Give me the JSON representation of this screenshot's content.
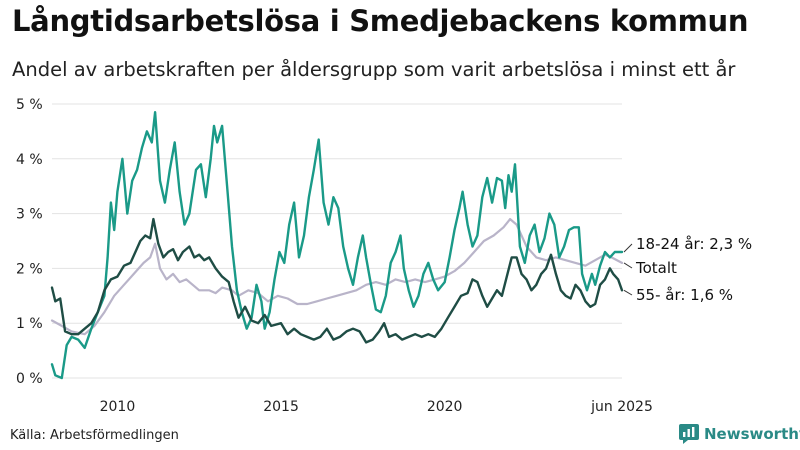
{
  "header": {
    "title": "Långtidsarbetslösa i Smedjebackens kommun",
    "subtitle": "Andel av arbetskraften per åldersgrupp som varit arbetslösa i minst ett år"
  },
  "footer": {
    "source": "Källa: Arbetsförmedlingen",
    "brand": "Newsworthy"
  },
  "chart_data": {
    "type": "line",
    "title": "Långtidsarbetslösa i Smedjebackens kommun",
    "subtitle": "Andel av arbetskraften per åldersgrupp som varit arbetslösa i minst ett år",
    "xlabel": "",
    "ylabel": "",
    "x_range": [
      2008.0,
      2025.42
    ],
    "ylim": [
      0,
      5
    ],
    "y_ticks": [
      {
        "value": 0,
        "label": "0 %"
      },
      {
        "value": 1,
        "label": "1 %"
      },
      {
        "value": 2,
        "label": "2 %"
      },
      {
        "value": 3,
        "label": "3 %"
      },
      {
        "value": 4,
        "label": "4 %"
      },
      {
        "value": 5,
        "label": "5 %"
      }
    ],
    "x_ticks": [
      {
        "value": 2010,
        "label": "2010"
      },
      {
        "value": 2015,
        "label": "2015"
      },
      {
        "value": 2020,
        "label": "2020"
      },
      {
        "value": 2025.42,
        "label": "jun 2025"
      }
    ],
    "grid": true,
    "series": [
      {
        "name": "Totalt",
        "label": "Totalt",
        "color": "#b9b4c9",
        "points": [
          [
            2008.0,
            1.05
          ],
          [
            2008.3,
            0.95
          ],
          [
            2008.6,
            0.85
          ],
          [
            2009.0,
            0.8
          ],
          [
            2009.3,
            0.95
          ],
          [
            2009.6,
            1.2
          ],
          [
            2009.9,
            1.5
          ],
          [
            2010.2,
            1.7
          ],
          [
            2010.5,
            1.9
          ],
          [
            2010.8,
            2.1
          ],
          [
            2011.0,
            2.2
          ],
          [
            2011.15,
            2.45
          ],
          [
            2011.3,
            2.0
          ],
          [
            2011.5,
            1.8
          ],
          [
            2011.7,
            1.9
          ],
          [
            2011.9,
            1.75
          ],
          [
            2012.1,
            1.8
          ],
          [
            2012.3,
            1.7
          ],
          [
            2012.5,
            1.6
          ],
          [
            2012.8,
            1.6
          ],
          [
            2013.0,
            1.55
          ],
          [
            2013.2,
            1.65
          ],
          [
            2013.5,
            1.6
          ],
          [
            2013.7,
            1.5
          ],
          [
            2014.0,
            1.6
          ],
          [
            2014.3,
            1.55
          ],
          [
            2014.6,
            1.4
          ],
          [
            2014.9,
            1.5
          ],
          [
            2015.2,
            1.45
          ],
          [
            2015.5,
            1.35
          ],
          [
            2015.8,
            1.35
          ],
          [
            2016.1,
            1.4
          ],
          [
            2016.4,
            1.45
          ],
          [
            2016.7,
            1.5
          ],
          [
            2017.0,
            1.55
          ],
          [
            2017.3,
            1.6
          ],
          [
            2017.6,
            1.7
          ],
          [
            2017.9,
            1.75
          ],
          [
            2018.2,
            1.7
          ],
          [
            2018.5,
            1.8
          ],
          [
            2018.8,
            1.75
          ],
          [
            2019.1,
            1.8
          ],
          [
            2019.4,
            1.75
          ],
          [
            2019.7,
            1.8
          ],
          [
            2020.0,
            1.85
          ],
          [
            2020.3,
            1.95
          ],
          [
            2020.6,
            2.1
          ],
          [
            2020.9,
            2.3
          ],
          [
            2021.2,
            2.5
          ],
          [
            2021.5,
            2.6
          ],
          [
            2021.8,
            2.75
          ],
          [
            2022.0,
            2.9
          ],
          [
            2022.2,
            2.8
          ],
          [
            2022.5,
            2.4
          ],
          [
            2022.8,
            2.2
          ],
          [
            2023.1,
            2.15
          ],
          [
            2023.4,
            2.2
          ],
          [
            2023.7,
            2.15
          ],
          [
            2024.0,
            2.1
          ],
          [
            2024.3,
            2.05
          ],
          [
            2024.6,
            2.15
          ],
          [
            2024.9,
            2.25
          ],
          [
            2025.1,
            2.2
          ],
          [
            2025.42,
            2.1
          ]
        ]
      },
      {
        "name": "18-24 år",
        "label": "18-24 år: 2,3 %",
        "color": "#1a9a88",
        "points": [
          [
            2008.0,
            0.25
          ],
          [
            2008.1,
            0.05
          ],
          [
            2008.3,
            0.0
          ],
          [
            2008.45,
            0.6
          ],
          [
            2008.6,
            0.75
          ],
          [
            2008.8,
            0.7
          ],
          [
            2009.0,
            0.55
          ],
          [
            2009.2,
            0.9
          ],
          [
            2009.4,
            1.2
          ],
          [
            2009.6,
            1.5
          ],
          [
            2009.7,
            2.2
          ],
          [
            2009.8,
            3.2
          ],
          [
            2009.9,
            2.7
          ],
          [
            2010.0,
            3.4
          ],
          [
            2010.15,
            4.0
          ],
          [
            2010.3,
            3.0
          ],
          [
            2010.45,
            3.6
          ],
          [
            2010.6,
            3.8
          ],
          [
            2010.75,
            4.2
          ],
          [
            2010.9,
            4.5
          ],
          [
            2011.05,
            4.3
          ],
          [
            2011.15,
            4.85
          ],
          [
            2011.3,
            3.6
          ],
          [
            2011.45,
            3.2
          ],
          [
            2011.6,
            3.8
          ],
          [
            2011.75,
            4.3
          ],
          [
            2011.9,
            3.4
          ],
          [
            2012.05,
            2.8
          ],
          [
            2012.2,
            3.0
          ],
          [
            2012.4,
            3.8
          ],
          [
            2012.55,
            3.9
          ],
          [
            2012.7,
            3.3
          ],
          [
            2012.85,
            4.0
          ],
          [
            2012.95,
            4.6
          ],
          [
            2013.05,
            4.3
          ],
          [
            2013.2,
            4.6
          ],
          [
            2013.35,
            3.5
          ],
          [
            2013.5,
            2.4
          ],
          [
            2013.65,
            1.6
          ],
          [
            2013.8,
            1.2
          ],
          [
            2013.95,
            0.9
          ],
          [
            2014.1,
            1.1
          ],
          [
            2014.25,
            1.7
          ],
          [
            2014.4,
            1.4
          ],
          [
            2014.5,
            0.9
          ],
          [
            2014.65,
            1.2
          ],
          [
            2014.8,
            1.8
          ],
          [
            2014.95,
            2.3
          ],
          [
            2015.1,
            2.1
          ],
          [
            2015.25,
            2.8
          ],
          [
            2015.4,
            3.2
          ],
          [
            2015.55,
            2.2
          ],
          [
            2015.7,
            2.6
          ],
          [
            2015.85,
            3.3
          ],
          [
            2016.0,
            3.8
          ],
          [
            2016.15,
            4.35
          ],
          [
            2016.3,
            3.2
          ],
          [
            2016.45,
            2.8
          ],
          [
            2016.6,
            3.3
          ],
          [
            2016.75,
            3.1
          ],
          [
            2016.9,
            2.4
          ],
          [
            2017.05,
            2.0
          ],
          [
            2017.2,
            1.7
          ],
          [
            2017.35,
            2.2
          ],
          [
            2017.5,
            2.6
          ],
          [
            2017.6,
            2.2
          ],
          [
            2017.75,
            1.7
          ],
          [
            2017.9,
            1.25
          ],
          [
            2018.05,
            1.2
          ],
          [
            2018.2,
            1.5
          ],
          [
            2018.35,
            2.1
          ],
          [
            2018.5,
            2.3
          ],
          [
            2018.65,
            2.6
          ],
          [
            2018.75,
            2.0
          ],
          [
            2018.9,
            1.6
          ],
          [
            2019.05,
            1.3
          ],
          [
            2019.2,
            1.5
          ],
          [
            2019.35,
            1.9
          ],
          [
            2019.5,
            2.1
          ],
          [
            2019.65,
            1.8
          ],
          [
            2019.8,
            1.6
          ],
          [
            2020.0,
            1.75
          ],
          [
            2020.15,
            2.2
          ],
          [
            2020.3,
            2.7
          ],
          [
            2020.45,
            3.1
          ],
          [
            2020.55,
            3.4
          ],
          [
            2020.7,
            2.8
          ],
          [
            2020.85,
            2.4
          ],
          [
            2021.0,
            2.6
          ],
          [
            2021.15,
            3.3
          ],
          [
            2021.3,
            3.65
          ],
          [
            2021.45,
            3.2
          ],
          [
            2021.6,
            3.65
          ],
          [
            2021.75,
            3.6
          ],
          [
            2021.85,
            3.1
          ],
          [
            2021.95,
            3.7
          ],
          [
            2022.05,
            3.4
          ],
          [
            2022.15,
            3.9
          ],
          [
            2022.3,
            2.4
          ],
          [
            2022.45,
            2.1
          ],
          [
            2022.6,
            2.6
          ],
          [
            2022.75,
            2.8
          ],
          [
            2022.9,
            2.3
          ],
          [
            2023.05,
            2.55
          ],
          [
            2023.2,
            3.0
          ],
          [
            2023.35,
            2.8
          ],
          [
            2023.5,
            2.2
          ],
          [
            2023.65,
            2.4
          ],
          [
            2023.8,
            2.7
          ],
          [
            2023.95,
            2.75
          ],
          [
            2024.1,
            2.75
          ],
          [
            2024.2,
            1.9
          ],
          [
            2024.35,
            1.6
          ],
          [
            2024.5,
            1.9
          ],
          [
            2024.6,
            1.7
          ],
          [
            2024.75,
            2.05
          ],
          [
            2024.9,
            2.3
          ],
          [
            2025.05,
            2.2
          ],
          [
            2025.2,
            2.3
          ],
          [
            2025.42,
            2.3
          ]
        ]
      },
      {
        "name": "55- år",
        "label": "55- år: 1,6 %",
        "color": "#1f4d45",
        "points": [
          [
            2008.0,
            1.65
          ],
          [
            2008.1,
            1.4
          ],
          [
            2008.25,
            1.45
          ],
          [
            2008.4,
            0.85
          ],
          [
            2008.6,
            0.8
          ],
          [
            2008.8,
            0.8
          ],
          [
            2009.0,
            0.9
          ],
          [
            2009.2,
            1.0
          ],
          [
            2009.4,
            1.2
          ],
          [
            2009.6,
            1.6
          ],
          [
            2009.8,
            1.8
          ],
          [
            2010.0,
            1.85
          ],
          [
            2010.2,
            2.05
          ],
          [
            2010.4,
            2.1
          ],
          [
            2010.55,
            2.3
          ],
          [
            2010.7,
            2.5
          ],
          [
            2010.85,
            2.6
          ],
          [
            2011.0,
            2.55
          ],
          [
            2011.1,
            2.9
          ],
          [
            2011.25,
            2.45
          ],
          [
            2011.4,
            2.2
          ],
          [
            2011.55,
            2.3
          ],
          [
            2011.7,
            2.35
          ],
          [
            2011.85,
            2.15
          ],
          [
            2012.0,
            2.3
          ],
          [
            2012.2,
            2.4
          ],
          [
            2012.35,
            2.2
          ],
          [
            2012.5,
            2.25
          ],
          [
            2012.65,
            2.15
          ],
          [
            2012.8,
            2.2
          ],
          [
            2013.0,
            2.0
          ],
          [
            2013.2,
            1.85
          ],
          [
            2013.4,
            1.75
          ],
          [
            2013.55,
            1.4
          ],
          [
            2013.7,
            1.1
          ],
          [
            2013.9,
            1.3
          ],
          [
            2014.1,
            1.05
          ],
          [
            2014.3,
            1.0
          ],
          [
            2014.5,
            1.15
          ],
          [
            2014.7,
            0.95
          ],
          [
            2015.0,
            1.0
          ],
          [
            2015.2,
            0.8
          ],
          [
            2015.4,
            0.9
          ],
          [
            2015.6,
            0.8
          ],
          [
            2015.8,
            0.75
          ],
          [
            2016.0,
            0.7
          ],
          [
            2016.2,
            0.75
          ],
          [
            2016.4,
            0.9
          ],
          [
            2016.6,
            0.7
          ],
          [
            2016.8,
            0.75
          ],
          [
            2017.0,
            0.85
          ],
          [
            2017.2,
            0.9
          ],
          [
            2017.4,
            0.85
          ],
          [
            2017.6,
            0.65
          ],
          [
            2017.8,
            0.7
          ],
          [
            2018.0,
            0.85
          ],
          [
            2018.15,
            1.0
          ],
          [
            2018.3,
            0.75
          ],
          [
            2018.5,
            0.8
          ],
          [
            2018.7,
            0.7
          ],
          [
            2018.9,
            0.75
          ],
          [
            2019.1,
            0.8
          ],
          [
            2019.3,
            0.75
          ],
          [
            2019.5,
            0.8
          ],
          [
            2019.7,
            0.75
          ],
          [
            2019.9,
            0.9
          ],
          [
            2020.1,
            1.1
          ],
          [
            2020.3,
            1.3
          ],
          [
            2020.5,
            1.5
          ],
          [
            2020.7,
            1.55
          ],
          [
            2020.85,
            1.8
          ],
          [
            2021.0,
            1.75
          ],
          [
            2021.15,
            1.5
          ],
          [
            2021.3,
            1.3
          ],
          [
            2021.45,
            1.45
          ],
          [
            2021.6,
            1.6
          ],
          [
            2021.75,
            1.5
          ],
          [
            2021.9,
            1.85
          ],
          [
            2022.05,
            2.2
          ],
          [
            2022.2,
            2.2
          ],
          [
            2022.35,
            1.9
          ],
          [
            2022.5,
            1.8
          ],
          [
            2022.65,
            1.6
          ],
          [
            2022.8,
            1.7
          ],
          [
            2022.95,
            1.9
          ],
          [
            2023.1,
            2.0
          ],
          [
            2023.25,
            2.25
          ],
          [
            2023.4,
            1.9
          ],
          [
            2023.55,
            1.6
          ],
          [
            2023.7,
            1.5
          ],
          [
            2023.85,
            1.45
          ],
          [
            2024.0,
            1.7
          ],
          [
            2024.15,
            1.6
          ],
          [
            2024.3,
            1.4
          ],
          [
            2024.45,
            1.3
          ],
          [
            2024.6,
            1.35
          ],
          [
            2024.75,
            1.7
          ],
          [
            2024.9,
            1.8
          ],
          [
            2025.05,
            2.0
          ],
          [
            2025.15,
            1.9
          ],
          [
            2025.3,
            1.8
          ],
          [
            2025.42,
            1.6
          ]
        ]
      }
    ]
  }
}
